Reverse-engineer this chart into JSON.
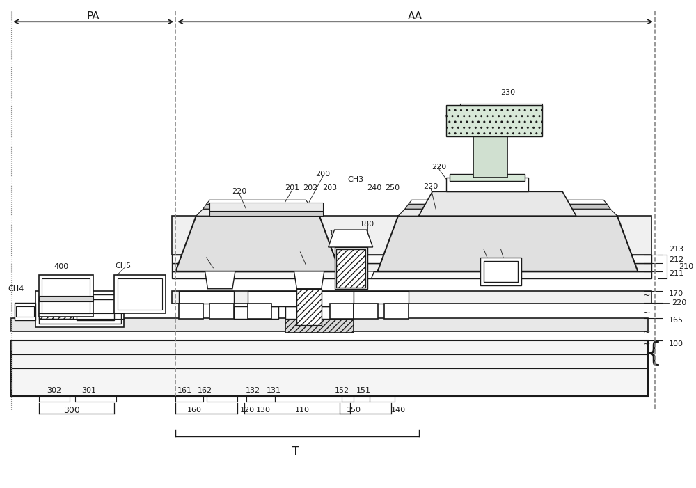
{
  "bg_color": "#ffffff",
  "line_color": "#1a1a1a",
  "figsize": [
    10.0,
    7.01
  ],
  "dpi": 100,
  "PA_label": "PA",
  "AA_label": "AA",
  "T_label": "T"
}
